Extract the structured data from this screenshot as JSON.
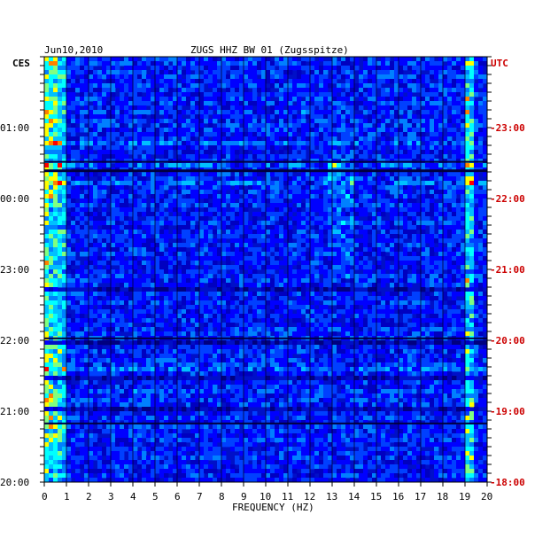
{
  "chart_data": {
    "type": "heatmap",
    "title": "ZUGS HHZ BW 01 (Zugsspitze)",
    "date": "Jun10,2010",
    "left_axis_label": "CES",
    "right_axis_label": "UTC",
    "xlabel": "FREQUENCY (HZ)",
    "xlim": [
      0,
      20
    ],
    "x_ticks": [
      "0",
      "1",
      "2",
      "3",
      "4",
      "5",
      "6",
      "7",
      "8",
      "9",
      "10",
      "11",
      "12",
      "13",
      "14",
      "15",
      "16",
      "17",
      "18",
      "19",
      "20"
    ],
    "left_time_ticks": [
      "01:00",
      "00:00",
      "23:00",
      "22:00",
      "21:00",
      "20:00"
    ],
    "right_time_ticks": [
      "23:00",
      "22:00",
      "21:00",
      "20:00",
      "19:00",
      "18:00"
    ],
    "colormap": [
      "#000080",
      "#0000c0",
      "#0000ff",
      "#0040ff",
      "#0080ff",
      "#00c0ff",
      "#00ffff",
      "#80ff80",
      "#ffff00",
      "#ff8000",
      "#ff0000"
    ],
    "right_label_color": "#cc0000",
    "grid": true,
    "description_marks": {
      "strong_low_freq_band_hz": [
        0,
        1
      ],
      "persistent_line_hz": 19.2
    }
  }
}
